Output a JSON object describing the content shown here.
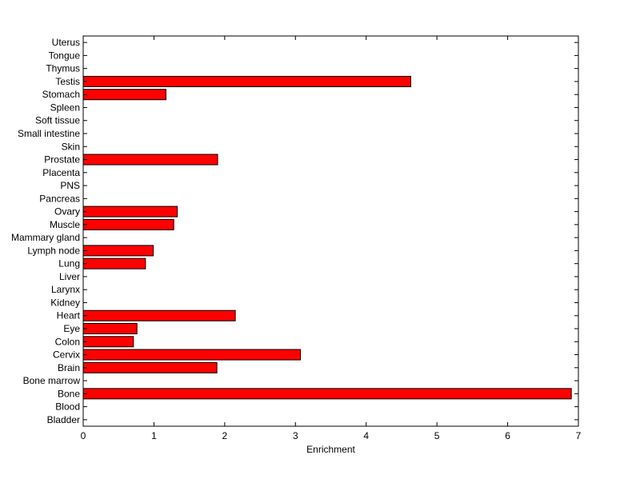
{
  "chart_data": {
    "type": "bar",
    "orientation": "horizontal",
    "categories": [
      "Uterus",
      "Tongue",
      "Thymus",
      "Testis",
      "Stomach",
      "Spleen",
      "Soft tissue",
      "Small intestine",
      "Skin",
      "Prostate",
      "Placenta",
      "PNS",
      "Pancreas",
      "Ovary",
      "Muscle",
      "Mammary gland",
      "Lymph node",
      "Lung",
      "Liver",
      "Larynx",
      "Kidney",
      "Heart",
      "Eye",
      "Colon",
      "Cervix",
      "Brain",
      "Bone marrow",
      "Bone",
      "Blood",
      "Bladder"
    ],
    "values": [
      0,
      0,
      0,
      4.63,
      1.17,
      0,
      0,
      0,
      0,
      1.9,
      0,
      0,
      0,
      1.33,
      1.28,
      0,
      0.99,
      0.88,
      0,
      0,
      0,
      2.15,
      0.76,
      0.71,
      3.07,
      1.89,
      0,
      6.9,
      0,
      0
    ],
    "title": "",
    "xlabel": "Enrichment",
    "ylabel": "",
    "xlim": [
      0,
      7
    ],
    "xticks": [
      0,
      1,
      2,
      3,
      4,
      5,
      6,
      7
    ],
    "grid": false,
    "colors": {
      "bar_fill": "#ff0000",
      "bar_stroke": "#000000",
      "axis": "#000000",
      "background": "#ffffff"
    }
  }
}
